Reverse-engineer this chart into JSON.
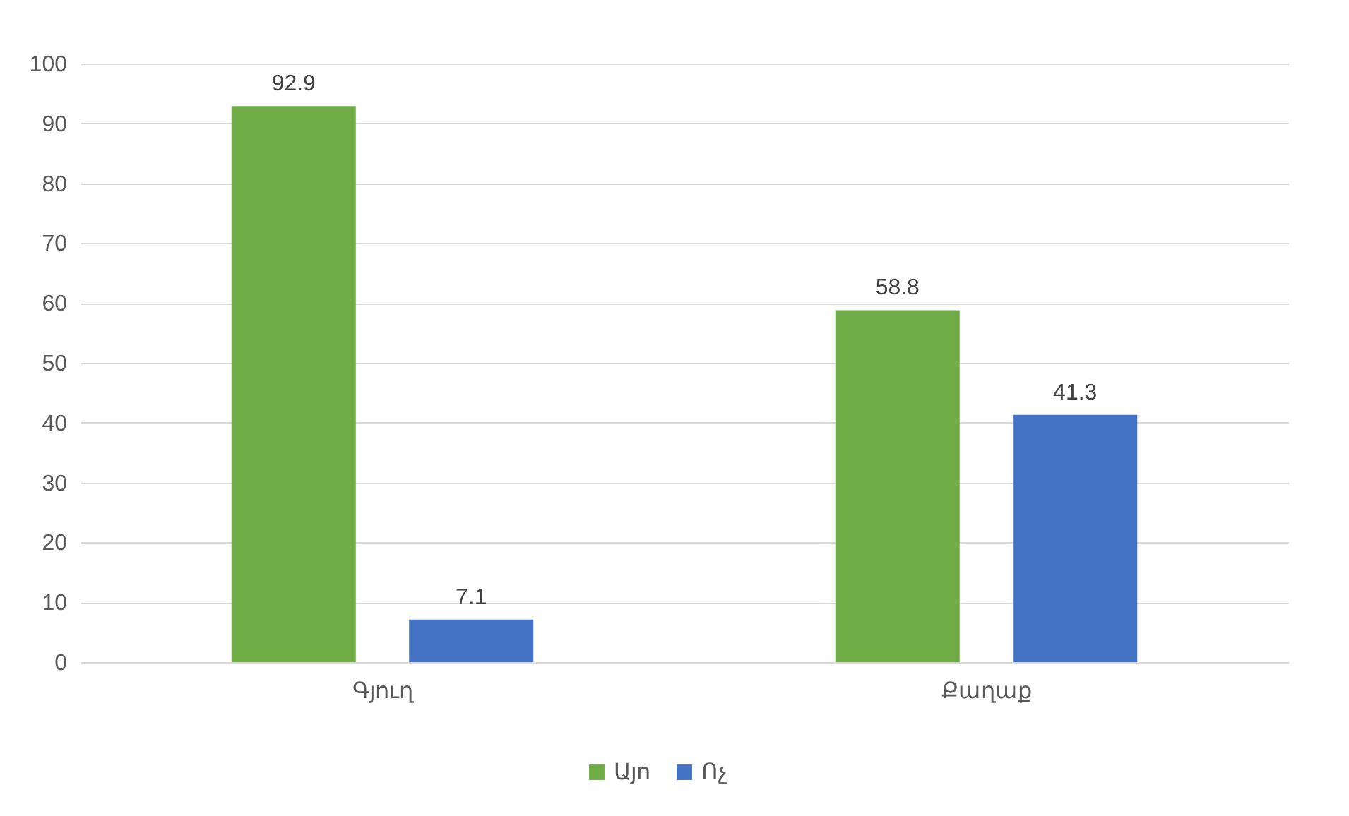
{
  "chart_data": {
    "type": "bar",
    "categories": [
      "Գյուղ",
      "Քաղաք"
    ],
    "series": [
      {
        "name": "Այո",
        "color": "#70ad47",
        "values": [
          92.9,
          58.8
        ]
      },
      {
        "name": "Ոչ",
        "color": "#4472c4",
        "values": [
          7.1,
          41.3
        ]
      }
    ],
    "ylim": [
      0,
      100
    ],
    "yticks": [
      0,
      10,
      20,
      30,
      40,
      50,
      60,
      70,
      80,
      90,
      100
    ],
    "grid": "y",
    "legend": "bottom",
    "data_labels": true
  }
}
